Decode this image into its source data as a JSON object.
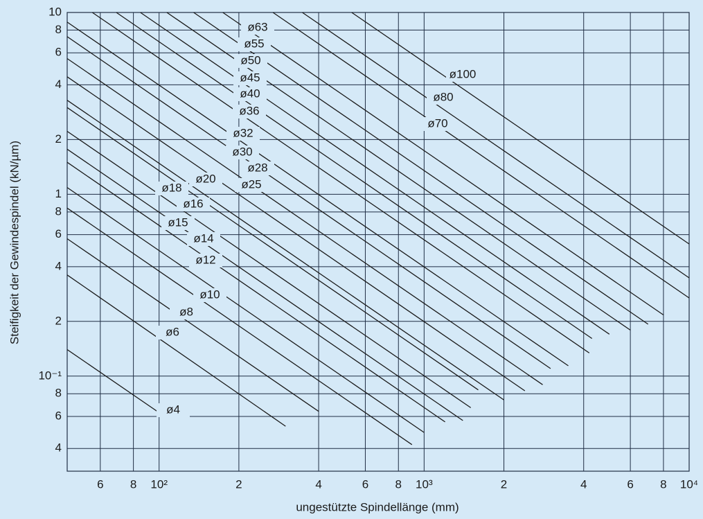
{
  "chart_data": {
    "type": "line",
    "xscale": "log",
    "yscale": "log",
    "grid": true,
    "x_label": "ungestützte Spindellänge (mm)",
    "y_label": "Steifigkeit der Gewindespindel (kN/µm)",
    "xlim": [
      45,
      10000
    ],
    "ylim": [
      0.03,
      10
    ],
    "xticks": [
      {
        "value": 60,
        "label": "6"
      },
      {
        "value": 80,
        "label": "8"
      },
      {
        "value": 100,
        "label": "10²"
      },
      {
        "value": 200,
        "label": "2"
      },
      {
        "value": 400,
        "label": "4"
      },
      {
        "value": 600,
        "label": "6"
      },
      {
        "value": 800,
        "label": "8"
      },
      {
        "value": 1000,
        "label": "10³"
      },
      {
        "value": 2000,
        "label": "2"
      },
      {
        "value": 4000,
        "label": "4"
      },
      {
        "value": 6000,
        "label": "6"
      },
      {
        "value": 8000,
        "label": "8"
      },
      {
        "value": 10000,
        "label": "10⁴"
      }
    ],
    "yticks": [
      10,
      8,
      6,
      4,
      2,
      1,
      {
        "value": 0.8,
        "label": "8"
      },
      {
        "value": 0.6,
        "label": "6"
      },
      {
        "value": 0.4,
        "label": "4"
      },
      {
        "value": 0.2,
        "label": "2"
      },
      {
        "value": 0.1,
        "label": "10⁻¹"
      },
      {
        "value": 0.08,
        "label": "8"
      },
      {
        "value": 0.06,
        "label": "6"
      },
      {
        "value": 0.04,
        "label": "4"
      }
    ],
    "series": [
      {
        "name": "ø100",
        "color": "#1a1a1a",
        "x": [
          533,
          10000
        ],
        "values": [
          10,
          0.533
        ]
      },
      {
        "name": "ø80",
        "color": "#1a1a1a",
        "x": [
          347,
          10000
        ],
        "values": [
          10,
          0.347
        ]
      },
      {
        "name": "ø70",
        "color": "#1a1a1a",
        "x": [
          269,
          10000
        ],
        "values": [
          10,
          0.269
        ]
      },
      {
        "name": "ø63",
        "color": "#1a1a1a",
        "x": [
          174,
          8000
        ],
        "values": [
          10,
          0.217
        ]
      },
      {
        "name": "ø55",
        "color": "#1a1a1a",
        "x": [
          135,
          7000
        ],
        "values": [
          10,
          0.193
        ]
      },
      {
        "name": "ø50",
        "color": "#1a1a1a",
        "x": [
          107,
          6000
        ],
        "values": [
          10,
          0.179
        ]
      },
      {
        "name": "ø45",
        "color": "#1a1a1a",
        "x": [
          85,
          5000
        ],
        "values": [
          10,
          0.17
        ]
      },
      {
        "name": "ø40",
        "color": "#1a1a1a",
        "x": [
          69,
          4300
        ],
        "values": [
          10,
          0.161
        ]
      },
      {
        "name": "ø36",
        "color": "#1a1a1a",
        "x": [
          56,
          4200
        ],
        "values": [
          10,
          0.134
        ]
      },
      {
        "name": "ø32",
        "color": "#1a1a1a",
        "x": [
          45,
          3500
        ],
        "values": [
          8.85,
          0.114
        ]
      },
      {
        "name": "ø30",
        "color": "#1a1a1a",
        "x": [
          45,
          3000
        ],
        "values": [
          7.36,
          0.11
        ]
      },
      {
        "name": "ø28",
        "color": "#1a1a1a",
        "x": [
          45,
          2800
        ],
        "values": [
          5.58,
          0.0897
        ]
      },
      {
        "name": "ø25",
        "color": "#1a1a1a",
        "x": [
          45,
          2400
        ],
        "values": [
          4.43,
          0.083
        ]
      },
      {
        "name": "ø20",
        "color": "#1a1a1a",
        "x": [
          45,
          2000
        ],
        "values": [
          3.29,
          0.074
        ]
      },
      {
        "name": "ø18",
        "color": "#1a1a1a",
        "x": [
          45,
          1600
        ],
        "values": [
          3.0,
          0.084
        ]
      },
      {
        "name": "ø16",
        "color": "#1a1a1a",
        "x": [
          45,
          1500
        ],
        "values": [
          2.22,
          0.067
        ]
      },
      {
        "name": "ø15",
        "color": "#1a1a1a",
        "x": [
          45,
          1400
        ],
        "values": [
          1.77,
          0.057
        ]
      },
      {
        "name": "ø14",
        "color": "#1a1a1a",
        "x": [
          45,
          1200
        ],
        "values": [
          1.5,
          0.056
        ]
      },
      {
        "name": "ø12",
        "color": "#1a1a1a",
        "x": [
          45,
          1000
        ],
        "values": [
          1.09,
          0.049
        ]
      },
      {
        "name": "ø10",
        "color": "#1a1a1a",
        "x": [
          45,
          900
        ],
        "values": [
          0.84,
          0.042
        ]
      },
      {
        "name": "ø8",
        "color": "#1a1a1a",
        "x": [
          45,
          400
        ],
        "values": [
          0.57,
          0.064
        ]
      },
      {
        "name": "ø6",
        "color": "#1a1a1a",
        "x": [
          45,
          300
        ],
        "values": [
          0.36,
          0.053
        ]
      },
      {
        "name": "ø4",
        "color": "#1a1a1a",
        "x": [
          45,
          100
        ],
        "values": [
          0.14,
          0.063
        ]
      }
    ]
  }
}
